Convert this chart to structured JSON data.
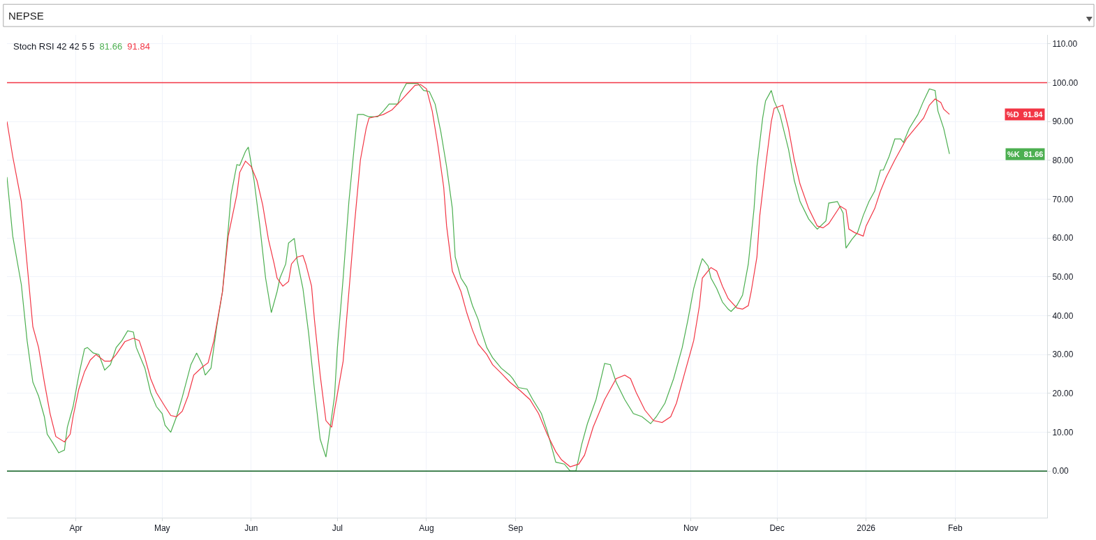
{
  "chart_data": {
    "type": "line",
    "title": "NEPSE",
    "subtitle": "Stoch RSI 42 42 5 5",
    "xlim": [
      "2025-03-08",
      "2026-03-05"
    ],
    "ylim": [
      -12,
      112.3
    ],
    "xticks": [
      {
        "value": "2025-04-01",
        "label": "Apr"
      },
      {
        "value": "2025-05-01",
        "label": "May"
      },
      {
        "value": "2025-06-01",
        "label": "Jun"
      },
      {
        "value": "2025-07-01",
        "label": "Jul"
      },
      {
        "value": "2025-08-01",
        "label": "Aug"
      },
      {
        "value": "2025-09-01",
        "label": "Sep"
      },
      {
        "value": "2025-11-01",
        "label": "Nov"
      },
      {
        "value": "2025-12-01",
        "label": "Dec"
      },
      {
        "value": "2026-01-01",
        "label": "2026"
      },
      {
        "value": "2026-02-01",
        "label": "Feb"
      }
    ],
    "yticks": [
      {
        "value": 0,
        "label": "0.00"
      },
      {
        "value": 10,
        "label": "10.00"
      },
      {
        "value": 20,
        "label": "20.00"
      },
      {
        "value": 30,
        "label": "30.00"
      },
      {
        "value": 40,
        "label": "40.00"
      },
      {
        "value": 50,
        "label": "50.00"
      },
      {
        "value": 60,
        "label": "60.00"
      },
      {
        "value": 70,
        "label": "70.00"
      },
      {
        "value": 80,
        "label": "80.00"
      },
      {
        "value": 90,
        "label": "90.00"
      },
      {
        "value": 100,
        "label": "100.00"
      },
      {
        "value": 110,
        "label": "110.00"
      }
    ],
    "grid": true,
    "legend": false,
    "marker": "none",
    "line_style": "solid",
    "annotations": [
      "81.66",
      "91.84",
      "81.66",
      "91.84"
    ],
    "ref_lines": [
      {
        "axis": "y",
        "value": 100,
        "label": null,
        "color": "#f23645"
      },
      {
        "axis": "y",
        "value": 0,
        "label": null,
        "color": "#0b5d1e"
      }
    ],
    "series": [
      {
        "name": "%K",
        "color": "#4caf50",
        "x": [
          "2025-03-08",
          "2025-03-10",
          "2025-03-13",
          "2025-03-15",
          "2025-03-17",
          "2025-03-19",
          "2025-03-21",
          "2025-03-22",
          "2025-03-24",
          "2025-03-26",
          "2025-03-28",
          "2025-03-29",
          "2025-03-31",
          "2025-04-02",
          "2025-04-04",
          "2025-04-05",
          "2025-04-07",
          "2025-04-09",
          "2025-04-11",
          "2025-04-13",
          "2025-04-15",
          "2025-04-17",
          "2025-04-19",
          "2025-04-21",
          "2025-04-22",
          "2025-04-25",
          "2025-04-27",
          "2025-04-29",
          "2025-05-01",
          "2025-05-02",
          "2025-05-04",
          "2025-05-06",
          "2025-05-08",
          "2025-05-11",
          "2025-05-13",
          "2025-05-15",
          "2025-05-16",
          "2025-05-18",
          "2025-05-20",
          "2025-05-22",
          "2025-05-24",
          "2025-05-25",
          "2025-05-27",
          "2025-05-28",
          "2025-05-30",
          "2025-05-31",
          "2025-06-02",
          "2025-06-04",
          "2025-06-06",
          "2025-06-08",
          "2025-06-10",
          "2025-06-11",
          "2025-06-13",
          "2025-06-14",
          "2025-06-16",
          "2025-06-17",
          "2025-06-19",
          "2025-06-21",
          "2025-06-23",
          "2025-06-25",
          "2025-06-27",
          "2025-06-28",
          "2025-06-30",
          "2025-07-01",
          "2025-07-03",
          "2025-07-05",
          "2025-07-07",
          "2025-07-08",
          "2025-07-10",
          "2025-07-12",
          "2025-07-15",
          "2025-07-17",
          "2025-07-19",
          "2025-07-22",
          "2025-07-23",
          "2025-07-25",
          "2025-07-29",
          "2025-07-30",
          "2025-07-31",
          "2025-08-02",
          "2025-08-04",
          "2025-08-06",
          "2025-08-08",
          "2025-08-10",
          "2025-08-11",
          "2025-08-13",
          "2025-08-15",
          "2025-08-17",
          "2025-08-19",
          "2025-08-20",
          "2025-08-22",
          "2025-08-24",
          "2025-08-25",
          "2025-08-27",
          "2025-08-30",
          "2025-08-31",
          "2025-09-02",
          "2025-09-05",
          "2025-09-07",
          "2025-09-10",
          "2025-09-12",
          "2025-09-14",
          "2025-09-15",
          "2025-09-18",
          "2025-09-20",
          "2025-09-22",
          "2025-09-24",
          "2025-09-26",
          "2025-09-29",
          "2025-10-02",
          "2025-10-04",
          "2025-10-06",
          "2025-10-09",
          "2025-10-12",
          "2025-10-15",
          "2025-10-18",
          "2025-10-20",
          "2025-10-23",
          "2025-10-26",
          "2025-10-29",
          "2025-10-31",
          "2025-11-02",
          "2025-11-04",
          "2025-11-05",
          "2025-11-07",
          "2025-11-08",
          "2025-11-10",
          "2025-11-12",
          "2025-11-14",
          "2025-11-15",
          "2025-11-17",
          "2025-11-19",
          "2025-11-21",
          "2025-11-23",
          "2025-11-24",
          "2025-11-26",
          "2025-11-27",
          "2025-11-29",
          "2025-11-30",
          "2025-12-02",
          "2025-12-05",
          "2025-12-07",
          "2025-12-09",
          "2025-12-12",
          "2025-12-14",
          "2025-12-15",
          "2025-12-18",
          "2025-12-19",
          "2025-12-22",
          "2025-12-24",
          "2025-12-25",
          "2025-12-27",
          "2025-12-29",
          "2025-12-31",
          "2026-01-02",
          "2026-01-04",
          "2026-01-06",
          "2026-01-07",
          "2026-01-09",
          "2026-01-11",
          "2026-01-13",
          "2026-01-14",
          "2026-01-16",
          "2026-01-19",
          "2026-01-21",
          "2026-01-23",
          "2026-01-25",
          "2026-01-26",
          "2026-01-28",
          "2026-01-30"
        ],
        "values": [
          75.7,
          60.5,
          48,
          33.6,
          22.9,
          19.3,
          14,
          9.5,
          7.2,
          4.7,
          5.4,
          11.3,
          16.6,
          24.7,
          31.5,
          31.8,
          30.4,
          30,
          26,
          27.4,
          31.8,
          33.6,
          36.1,
          35.8,
          31.8,
          26.5,
          20.2,
          16.6,
          14.8,
          11.8,
          10,
          14,
          19,
          27.4,
          30.4,
          27.4,
          24.7,
          26.5,
          37.2,
          46.2,
          62.3,
          71.2,
          78.9,
          78.7,
          82.3,
          83.4,
          74.8,
          63.1,
          49.7,
          40.8,
          46.2,
          49.7,
          53.3,
          58.7,
          59.9,
          54.2,
          47,
          35.4,
          21.1,
          8.2,
          3.6,
          8.6,
          19.3,
          31.8,
          49.7,
          69.4,
          84.6,
          91.8,
          91.8,
          91.2,
          91.2,
          92.7,
          94.5,
          94.5,
          97.1,
          99.8,
          99.8,
          98.9,
          98,
          97.7,
          94.5,
          87.3,
          78.4,
          67.6,
          55.1,
          49.7,
          47.4,
          42.6,
          39,
          36.3,
          31.8,
          29.2,
          28.3,
          26.5,
          24.7,
          23.8,
          21.5,
          21.1,
          18.4,
          14.8,
          10.4,
          5,
          2.3,
          1.8,
          0,
          0,
          6.8,
          12.2,
          18.4,
          27.7,
          27.4,
          22.9,
          18.4,
          14.8,
          14,
          12.2,
          14,
          17.5,
          23.8,
          31.8,
          39,
          47,
          52.4,
          54.7,
          52.8,
          49.7,
          47,
          43.5,
          41.7,
          41.1,
          42.6,
          45.3,
          53.3,
          67.6,
          78.4,
          90.9,
          95.3,
          98,
          95.3,
          91.8,
          82.8,
          74.8,
          69.4,
          64.9,
          63.1,
          62.3,
          64.4,
          69,
          69.4,
          66.4,
          57.4,
          59.6,
          61.4,
          65.8,
          69.4,
          72.1,
          77.5,
          77.5,
          81,
          85.5,
          85.5,
          84.6,
          88.2,
          91.8,
          95.3,
          98.4,
          98,
          92.7,
          88.2,
          81.66
        ]
      },
      {
        "name": "%D",
        "color": "#f23645",
        "x": [
          "2025-03-08",
          "2025-03-10",
          "2025-03-13",
          "2025-03-15",
          "2025-03-17",
          "2025-03-19",
          "2025-03-21",
          "2025-03-23",
          "2025-03-25",
          "2025-03-28",
          "2025-03-30",
          "2025-03-31",
          "2025-04-02",
          "2025-04-04",
          "2025-04-06",
          "2025-04-08",
          "2025-04-11",
          "2025-04-13",
          "2025-04-15",
          "2025-04-18",
          "2025-04-21",
          "2025-04-23",
          "2025-04-25",
          "2025-04-27",
          "2025-04-29",
          "2025-05-02",
          "2025-05-04",
          "2025-05-06",
          "2025-05-08",
          "2025-05-10",
          "2025-05-12",
          "2025-05-15",
          "2025-05-17",
          "2025-05-19",
          "2025-05-22",
          "2025-05-24",
          "2025-05-27",
          "2025-05-28",
          "2025-05-30",
          "2025-06-01",
          "2025-06-03",
          "2025-06-05",
          "2025-06-07",
          "2025-06-09",
          "2025-06-10",
          "2025-06-12",
          "2025-06-14",
          "2025-06-15",
          "2025-06-17",
          "2025-06-19",
          "2025-06-20",
          "2025-06-22",
          "2025-06-23",
          "2025-06-25",
          "2025-06-27",
          "2025-06-29",
          "2025-06-30",
          "2025-07-03",
          "2025-07-05",
          "2025-07-07",
          "2025-07-09",
          "2025-07-11",
          "2025-07-12",
          "2025-07-14",
          "2025-07-17",
          "2025-07-20",
          "2025-07-23",
          "2025-07-26",
          "2025-07-28",
          "2025-07-30",
          "2025-08-01",
          "2025-08-03",
          "2025-08-05",
          "2025-08-07",
          "2025-08-08",
          "2025-08-10",
          "2025-08-13",
          "2025-08-15",
          "2025-08-17",
          "2025-08-19",
          "2025-08-22",
          "2025-08-24",
          "2025-08-27",
          "2025-08-30",
          "2025-09-02",
          "2025-09-06",
          "2025-09-09",
          "2025-09-12",
          "2025-09-15",
          "2025-09-17",
          "2025-09-20",
          "2025-09-23",
          "2025-09-25",
          "2025-09-28",
          "2025-10-02",
          "2025-10-06",
          "2025-10-09",
          "2025-10-11",
          "2025-10-13",
          "2025-10-16",
          "2025-10-19",
          "2025-10-22",
          "2025-10-25",
          "2025-10-27",
          "2025-10-30",
          "2025-11-02",
          "2025-11-04",
          "2025-11-05",
          "2025-11-07",
          "2025-11-08",
          "2025-11-10",
          "2025-11-12",
          "2025-11-14",
          "2025-11-17",
          "2025-11-19",
          "2025-11-21",
          "2025-11-22",
          "2025-11-24",
          "2025-11-25",
          "2025-11-27",
          "2025-11-29",
          "2025-11-30",
          "2025-12-03",
          "2025-12-05",
          "2025-12-07",
          "2025-12-09",
          "2025-12-12",
          "2025-12-15",
          "2025-12-17",
          "2025-12-19",
          "2025-12-23",
          "2025-12-25",
          "2025-12-26",
          "2025-12-28",
          "2025-12-31",
          "2026-01-01",
          "2026-01-04",
          "2026-01-06",
          "2026-01-08",
          "2026-01-11",
          "2026-01-13",
          "2026-01-15",
          "2026-01-18",
          "2026-01-21",
          "2026-01-23",
          "2026-01-25",
          "2026-01-27",
          "2026-01-28",
          "2026-01-30"
        ],
        "values": [
          90,
          81,
          69.4,
          53.3,
          37.2,
          31.8,
          22.9,
          14.8,
          8.9,
          7.5,
          9.5,
          14,
          21.1,
          25.6,
          28.6,
          30,
          28.3,
          28.3,
          30,
          33.3,
          34.2,
          33.6,
          29.2,
          23.8,
          20.2,
          16.6,
          14.3,
          14,
          15.4,
          19.3,
          24.7,
          26.8,
          27.9,
          33.6,
          46.2,
          60.5,
          71.2,
          76.9,
          79.8,
          78.4,
          74.8,
          68.5,
          59.6,
          53.3,
          49.7,
          47.6,
          48.8,
          53.3,
          55.1,
          55.5,
          53.3,
          47.6,
          39,
          24.7,
          13,
          11.3,
          15.7,
          28.3,
          46.2,
          64,
          80.1,
          88.2,
          90.9,
          91.2,
          91.8,
          93,
          95.3,
          97.7,
          99.3,
          99.5,
          98.4,
          92.7,
          83.7,
          73,
          63.1,
          51.5,
          46.2,
          40.8,
          36.3,
          32.7,
          30,
          27.4,
          25.2,
          22.9,
          21.1,
          18.4,
          14.8,
          9.5,
          5,
          2.9,
          1.1,
          1.8,
          4.1,
          11.3,
          18.4,
          23.8,
          24.7,
          23.8,
          20.2,
          15.7,
          13,
          12.5,
          14,
          17.5,
          25.6,
          33.6,
          42.6,
          49.7,
          51.5,
          52.4,
          51.5,
          47.6,
          44.4,
          42,
          41.7,
          42.6,
          46.2,
          55.1,
          65.8,
          78.4,
          90,
          93.4,
          94.2,
          88.2,
          80.1,
          73.9,
          67.6,
          63.1,
          62.6,
          63.7,
          68.2,
          67.3,
          62.3,
          61.4,
          60.5,
          63.1,
          67.6,
          72.1,
          75.7,
          80.1,
          82.8,
          85.5,
          88.2,
          90.9,
          94.2,
          95.8,
          94.9,
          93.2,
          91.84
        ]
      }
    ]
  }
}
